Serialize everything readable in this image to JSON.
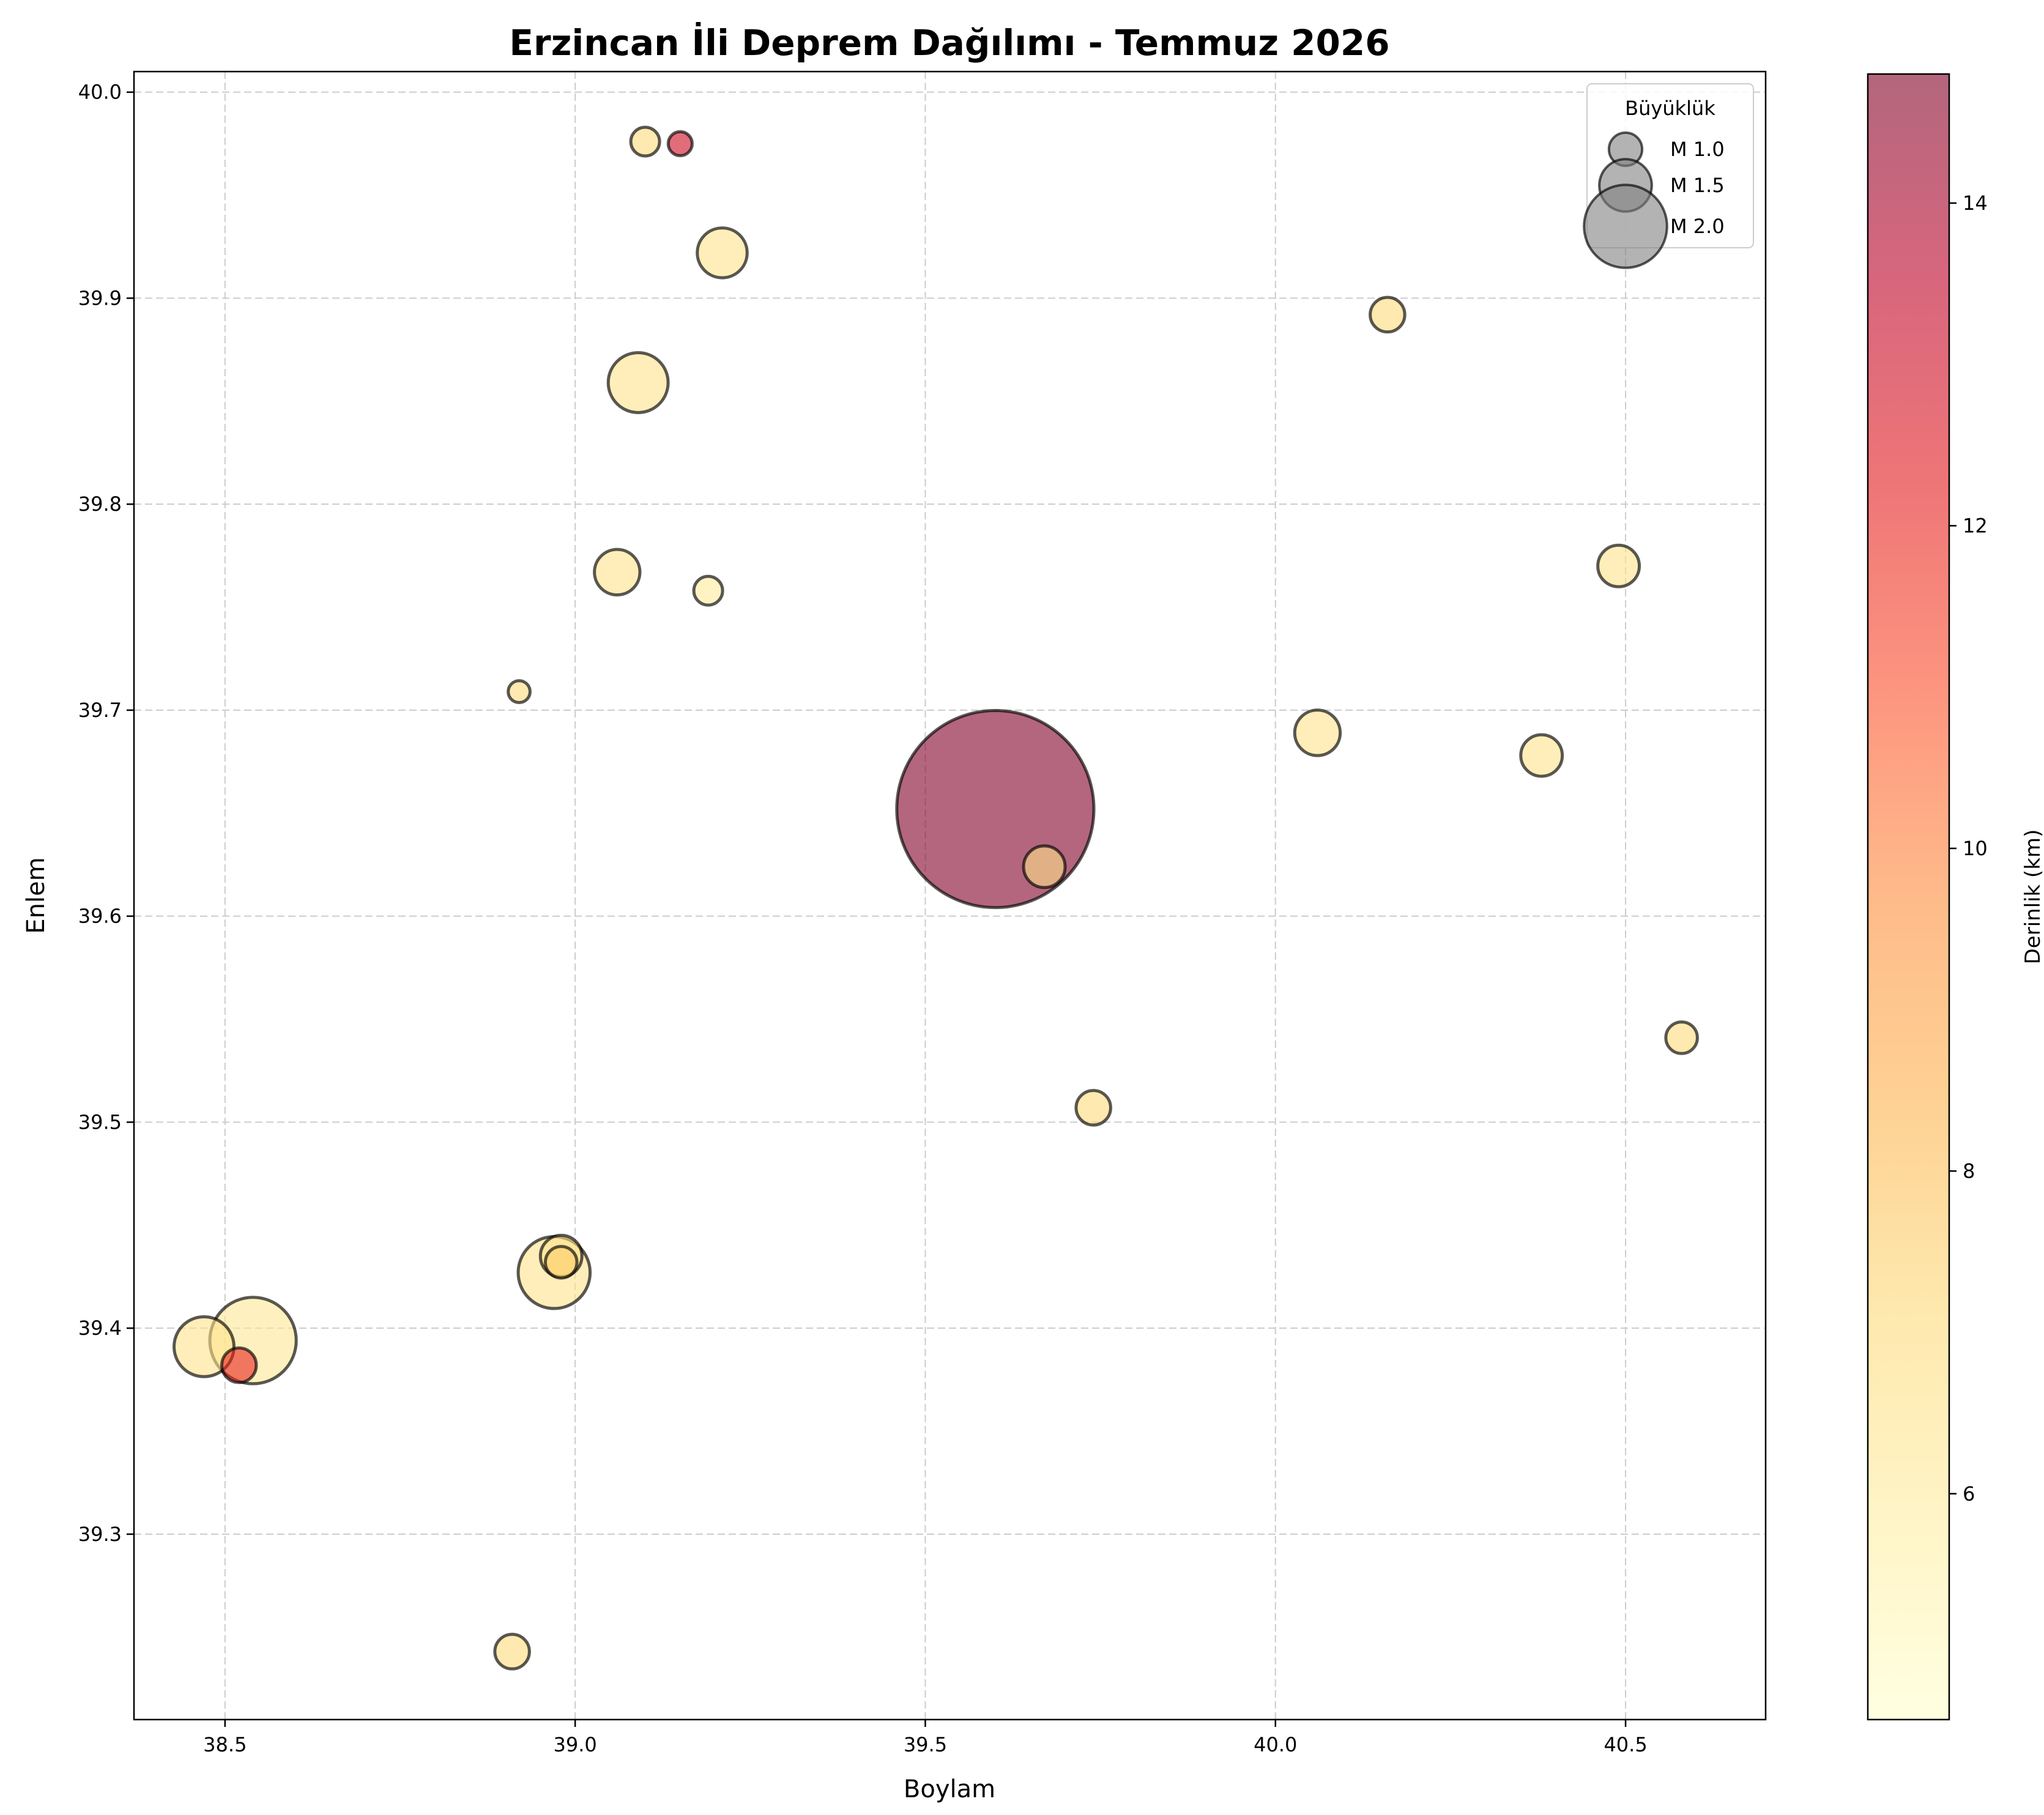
{
  "chart_data": {
    "type": "scatter",
    "title": "Erzincan İli Deprem Dağılımı - Temmuz 2026",
    "xlabel": "Boylam",
    "ylabel": "Enlem",
    "xlim": [
      38.37,
      40.7
    ],
    "ylim": [
      39.21,
      40.01
    ],
    "xticks": [
      "38.5",
      "39.0",
      "39.5",
      "40.0",
      "40.5"
    ],
    "yticks": [
      "39.3",
      "39.4",
      "39.5",
      "39.6",
      "39.7",
      "39.8",
      "39.9",
      "40.0"
    ],
    "grid": true,
    "size_encoding": "magnitude",
    "color_encoding": "depth_km",
    "points": [
      {
        "lon": 39.6,
        "lat": 39.652,
        "mag": 2.9,
        "depth": 14.8
      },
      {
        "lon": 38.54,
        "lat": 39.394,
        "mag": 2.0,
        "depth": 6.2
      },
      {
        "lon": 38.47,
        "lat": 39.391,
        "mag": 1.6,
        "depth": 6.5
      },
      {
        "lon": 38.52,
        "lat": 39.382,
        "mag": 1.0,
        "depth": 12.0
      },
      {
        "lon": 38.97,
        "lat": 39.427,
        "mag": 1.8,
        "depth": 6.5
      },
      {
        "lon": 38.98,
        "lat": 39.435,
        "mag": 1.2,
        "depth": 6.5
      },
      {
        "lon": 38.98,
        "lat": 39.432,
        "mag": 0.9,
        "depth": 7.5
      },
      {
        "lon": 38.91,
        "lat": 39.243,
        "mag": 1.0,
        "depth": 7.0
      },
      {
        "lon": 39.09,
        "lat": 39.859,
        "mag": 1.6,
        "depth": 6.5
      },
      {
        "lon": 39.21,
        "lat": 39.922,
        "mag": 1.4,
        "depth": 6.5
      },
      {
        "lon": 39.06,
        "lat": 39.767,
        "mag": 1.3,
        "depth": 6.5
      },
      {
        "lon": 39.19,
        "lat": 39.758,
        "mag": 0.8,
        "depth": 6.0
      },
      {
        "lon": 39.1,
        "lat": 39.976,
        "mag": 0.8,
        "depth": 7.0
      },
      {
        "lon": 39.15,
        "lat": 39.975,
        "mag": 0.6,
        "depth": 13.0
      },
      {
        "lon": 38.92,
        "lat": 39.709,
        "mag": 0.5,
        "depth": 7.0
      },
      {
        "lon": 39.67,
        "lat": 39.624,
        "mag": 1.2,
        "depth": 6.5
      },
      {
        "lon": 39.74,
        "lat": 39.507,
        "mag": 1.0,
        "depth": 7.0
      },
      {
        "lon": 40.06,
        "lat": 39.689,
        "mag": 1.3,
        "depth": 6.5
      },
      {
        "lon": 40.16,
        "lat": 39.892,
        "mag": 1.0,
        "depth": 7.0
      },
      {
        "lon": 40.38,
        "lat": 39.678,
        "mag": 1.2,
        "depth": 6.5
      },
      {
        "lon": 40.49,
        "lat": 39.77,
        "mag": 1.2,
        "depth": 6.5
      },
      {
        "lon": 40.58,
        "lat": 39.541,
        "mag": 0.9,
        "depth": 7.0
      }
    ],
    "legend": {
      "title": "Büyüklük",
      "placement": "top-right",
      "entries": [
        {
          "label": "M 1.0",
          "mag": 1.0
        },
        {
          "label": "M 1.5",
          "mag": 1.5
        },
        {
          "label": "M 2.0",
          "mag": 2.0
        }
      ]
    },
    "colorbar": {
      "label": "Derinlik (km)",
      "range": [
        4.6,
        14.8
      ],
      "ticks": [
        "6",
        "8",
        "10",
        "12",
        "14"
      ],
      "colormap": [
        "#ffffcc",
        "#ffeda0",
        "#fed976",
        "#feb24c",
        "#fd8d3c",
        "#fc4e2a",
        "#e31a1c",
        "#bd0026",
        "#800026"
      ]
    },
    "colors": {
      "point_edge": "#000000",
      "legend_marker": "#808080",
      "grid": "#cccccc"
    }
  }
}
